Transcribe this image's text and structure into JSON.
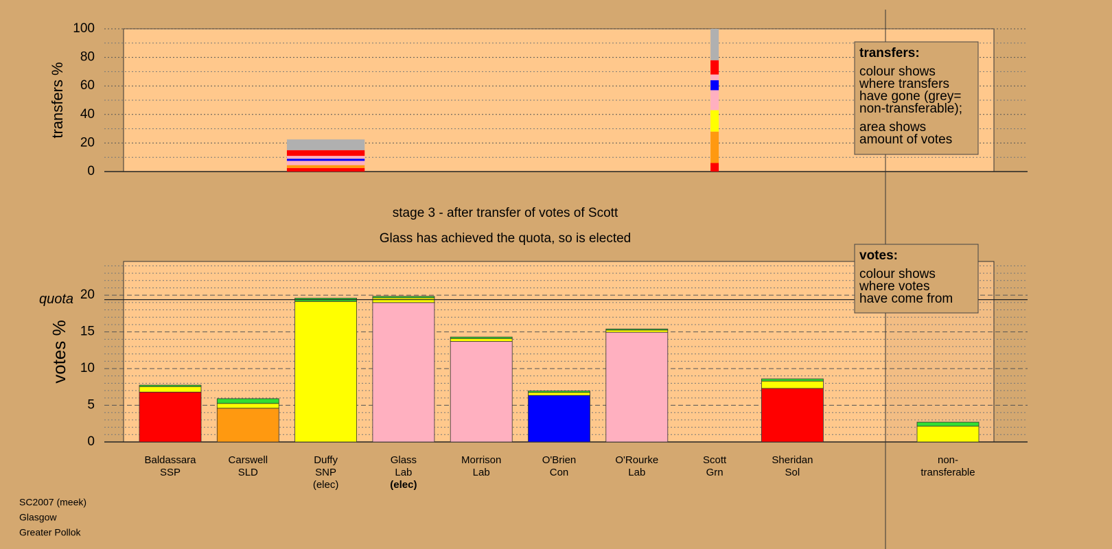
{
  "chart_data": [
    {
      "type": "bar",
      "ylabel": "transfers %",
      "ylim": [
        0,
        100
      ],
      "yticks": [
        0,
        20,
        40,
        60,
        80,
        100
      ],
      "minor_yticks": [
        10,
        30,
        50,
        70,
        90
      ],
      "major_grid": "dotted",
      "bars": [
        null,
        null,
        {
          "width": 1,
          "segments": [
            {
              "color": "#ff0000",
              "value": 2.5
            },
            {
              "color": "#ff9910",
              "value": 2
            },
            {
              "color": "#ffb0c0",
              "value": 3
            },
            {
              "color": "#0000ff",
              "value": 1.5
            },
            {
              "color": "#ffb0c0",
              "value": 2
            },
            {
              "color": "#ff0000",
              "value": 4
            },
            {
              "color": "#b0b0b0",
              "value": 7.5
            }
          ]
        },
        null,
        null,
        null,
        null,
        {
          "width": 0.106,
          "segments": [
            {
              "color": "#ff0000",
              "value": 6
            },
            {
              "color": "#ff9910",
              "value": 22
            },
            {
              "color": "#ffff00",
              "value": 15
            },
            {
              "color": "#ffb0c0",
              "value": 14
            },
            {
              "color": "#0000ff",
              "value": 7
            },
            {
              "color": "#ffb0c0",
              "value": 4
            },
            {
              "color": "#ff0000",
              "value": 10
            },
            {
              "color": "#b0b0b0",
              "value": 22
            }
          ]
        },
        null,
        null,
        null
      ]
    },
    {
      "type": "bar",
      "ylabel": "votes %",
      "ylim": [
        0,
        24.6
      ],
      "yticks": [
        0,
        5,
        10,
        15,
        20
      ],
      "minor_yticks": [
        1,
        2,
        3,
        4,
        6,
        7,
        8,
        9,
        11,
        12,
        13,
        14,
        16,
        17,
        18,
        19,
        21,
        22,
        23,
        24
      ],
      "major_grid": "dashed",
      "quota": 19.4,
      "quota_label": "quota",
      "newly_elected": 3,
      "categories": [
        [
          "Baldassara",
          "SSP"
        ],
        [
          "Carswell",
          "SLD"
        ],
        [
          "Duffy",
          "SNP",
          "(elec)"
        ],
        [
          "Glass",
          "Lab",
          "(elec)"
        ],
        [
          "Morrison",
          "Lab"
        ],
        [
          "O'Brien",
          "Con"
        ],
        [
          "O'Rourke",
          "Lab"
        ],
        [
          "Scott",
          "Grn"
        ],
        [
          "Sheridan",
          "Sol"
        ],
        null,
        [
          "non-",
          "transferable"
        ]
      ],
      "bars": [
        [
          {
            "color": "#ff0000",
            "value": 6.8
          },
          {
            "color": "#ffff00",
            "value": 0.75
          },
          {
            "color": "#33dd33",
            "value": 0.2
          }
        ],
        [
          {
            "color": "#ff9910",
            "value": 4.6
          },
          {
            "color": "#ffff00",
            "value": 0.65
          },
          {
            "color": "#33dd33",
            "value": 0.65
          }
        ],
        [
          {
            "color": "#ffff00",
            "value": 19.15
          },
          {
            "color": "#33dd33",
            "value": 0.45
          }
        ],
        [
          {
            "color": "#ffb0c0",
            "value": 19.0
          },
          {
            "color": "#ffff00",
            "value": 0.65
          },
          {
            "color": "#33dd33",
            "value": 0.2
          }
        ],
        [
          {
            "color": "#ffb0c0",
            "value": 13.7
          },
          {
            "color": "#ffff00",
            "value": 0.4
          },
          {
            "color": "#33dd33",
            "value": 0.2
          }
        ],
        [
          {
            "color": "#0000ff",
            "value": 6.35
          },
          {
            "color": "#ffff00",
            "value": 0.4
          },
          {
            "color": "#33dd33",
            "value": 0.2
          }
        ],
        [
          {
            "color": "#ffb0c0",
            "value": 14.95
          },
          {
            "color": "#ffff00",
            "value": 0.3
          },
          {
            "color": "#33dd33",
            "value": 0.15
          }
        ],
        [],
        [
          {
            "color": "#ff0000",
            "value": 7.3
          },
          {
            "color": "#ffff00",
            "value": 1.0
          },
          {
            "color": "#33dd33",
            "value": 0.3
          }
        ],
        [],
        [
          {
            "color": "#ffff00",
            "value": 2.15
          },
          {
            "color": "#33dd33",
            "value": 0.55
          }
        ]
      ]
    }
  ],
  "notes": {
    "stage": "stage 3 - after transfer of votes of Scott",
    "elected": "Glass has achieved the quota, so is elected"
  },
  "legends": [
    {
      "title": "transfers:",
      "lines": [
        "colour shows",
        "where transfers",
        "have gone (grey=",
        "non-transferable);",
        "area shows",
        "amount of votes"
      ]
    },
    {
      "title": "votes:",
      "lines": [
        "colour shows",
        "where votes",
        "have come from"
      ]
    }
  ],
  "footer": [
    "SC2007 (meek)",
    "Glasgow",
    "Greater Pollok"
  ]
}
